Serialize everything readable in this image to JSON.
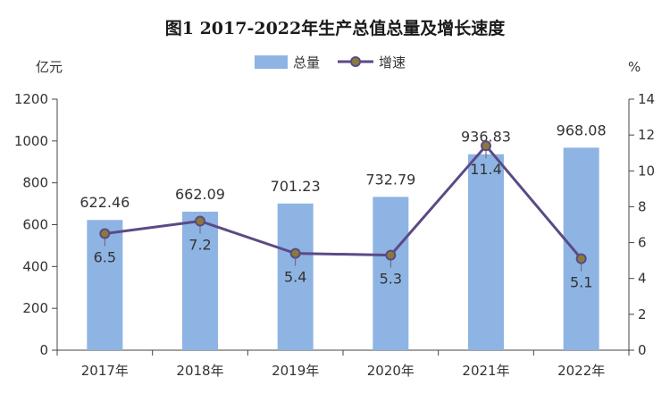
{
  "chart_data": {
    "type": "bar+line",
    "title": "图1 2017-2022年生产总值总量及增长速度",
    "categories": [
      "2017年",
      "2018年",
      "2019年",
      "2020年",
      "2021年",
      "2022年"
    ],
    "series": [
      {
        "name": "总量",
        "type": "bar",
        "axis": "left",
        "values": [
          622.46,
          662.09,
          701.23,
          732.79,
          936.83,
          968.08
        ],
        "labels": [
          "622.46",
          "662.09",
          "701.23",
          "732.79",
          "936.83",
          "968.08"
        ],
        "color": "#8eb4e3"
      },
      {
        "name": "增速",
        "type": "line",
        "axis": "right",
        "values": [
          6.5,
          7.2,
          5.4,
          5.3,
          11.4,
          5.1
        ],
        "labels": [
          "6.5",
          "7.2",
          "5.4",
          "5.3",
          "11.4",
          "5.1"
        ],
        "color": "#5b4a86",
        "marker_color": "#8a7a3a"
      }
    ],
    "yleft": {
      "label": "亿元",
      "ylim": [
        0,
        1200
      ],
      "ticks": [
        0,
        200,
        400,
        600,
        800,
        1000,
        1200
      ],
      "tick_labels": [
        "0",
        "200",
        "400",
        "600",
        "800",
        "1000",
        "1200"
      ]
    },
    "yright": {
      "label": "%",
      "ylim": [
        0,
        14
      ],
      "ticks": [
        0,
        2,
        4,
        6,
        8,
        10,
        12,
        14
      ],
      "tick_labels": [
        "0",
        "2",
        "4",
        "6",
        "8",
        "10",
        "12",
        "14"
      ]
    },
    "legend": {
      "position": "top-center",
      "entries": [
        "总量",
        "增速"
      ]
    },
    "grid": false
  }
}
